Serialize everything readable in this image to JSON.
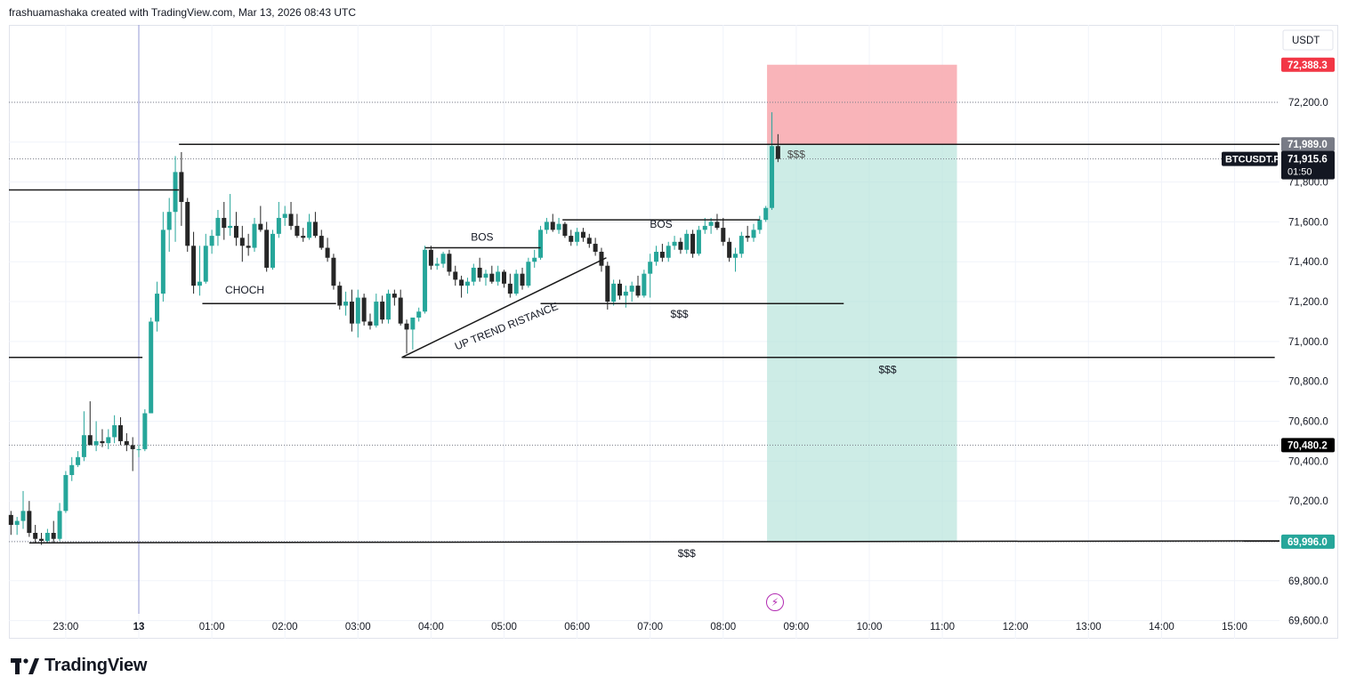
{
  "header": {
    "attribution": "frashuamashaka created with TradingView.com, Mar 13, 2026 08:43 UTC"
  },
  "footer": {
    "brand": "TradingView"
  },
  "colors": {
    "up": "#26a69a",
    "down": "#262626",
    "grid": "#f0f3fa",
    "axis_text": "#131722",
    "stop_zone": "#f8a7ad",
    "target_zone": "#b2e2d8",
    "stop_label": "#f23645",
    "neutral_label": "#787b86",
    "dark_label": "#131722",
    "target_label": "#26a69a"
  },
  "chart_data": {
    "type": "candlestick",
    "symbol": "BTCUSDT.P",
    "currency": "USDT",
    "ylim": [
      69500,
      72600
    ],
    "y_ticks": [
      "69,600.0",
      "69,800.0",
      "70,000.0",
      "70,200.0",
      "70,400.0",
      "70,600.0",
      "70,800.0",
      "71,000.0",
      "71,200.0",
      "71,400.0",
      "71,600.0",
      "71,800.0",
      "72,000.0",
      "72,200.0"
    ],
    "x_ticks": [
      "23:00",
      "13",
      "01:00",
      "02:00",
      "03:00",
      "04:00",
      "05:00",
      "06:00",
      "07:00",
      "08:00",
      "09:00",
      "10:00",
      "11:00",
      "12:00",
      "13:00",
      "14:00",
      "15:00"
    ],
    "x_tick_hours": [
      -1,
      0,
      1,
      2,
      3,
      4,
      5,
      6,
      7,
      8,
      9,
      10,
      11,
      12,
      13,
      14,
      15
    ],
    "x_range_hours": [
      -1.8,
      15.65
    ],
    "candle_interval_minutes": 5,
    "candles": [
      [
        -1.75,
        70130,
        70150,
        70030,
        70080
      ],
      [
        -1.6667,
        70080,
        70120,
        70030,
        70100
      ],
      [
        -1.5833,
        70100,
        70250,
        70060,
        70150
      ],
      [
        -1.5,
        70150,
        70200,
        70020,
        70040
      ],
      [
        -1.4167,
        70040,
        70080,
        69990,
        70010
      ],
      [
        -1.3333,
        70010,
        70040,
        69980,
        70000
      ],
      [
        -1.25,
        70000,
        70060,
        69990,
        70040
      ],
      [
        -1.1667,
        70040,
        70100,
        69990,
        70010
      ],
      [
        -1.0833,
        70010,
        70190,
        70000,
        70150
      ],
      [
        -1.0,
        70150,
        70350,
        70140,
        70330
      ],
      [
        -0.9167,
        70330,
        70420,
        70300,
        70380
      ],
      [
        -0.8333,
        70380,
        70450,
        70370,
        70420
      ],
      [
        -0.75,
        70420,
        70650,
        70400,
        70530
      ],
      [
        -0.6667,
        70530,
        70700,
        70500,
        70480
      ],
      [
        -0.5833,
        70480,
        70600,
        70450,
        70500
      ],
      [
        -0.5,
        70500,
        70560,
        70470,
        70490
      ],
      [
        -0.4167,
        70490,
        70560,
        70460,
        70520
      ],
      [
        -0.3333,
        70520,
        70630,
        70490,
        70580
      ],
      [
        -0.25,
        70580,
        70620,
        70480,
        70500
      ],
      [
        -0.1667,
        70500,
        70540,
        70450,
        70480
      ],
      [
        -0.0833,
        70480,
        70520,
        70350,
        70460
      ],
      [
        0.0,
        70460,
        70480,
        70420,
        70460
      ],
      [
        0.0833,
        70460,
        70660,
        70450,
        70640
      ],
      [
        0.1667,
        70640,
        71120,
        70640,
        71100
      ],
      [
        0.25,
        71100,
        71300,
        71050,
        71240
      ],
      [
        0.3333,
        71240,
        71650,
        71200,
        71560
      ],
      [
        0.4167,
        71560,
        71720,
        71450,
        71650
      ],
      [
        0.5,
        71650,
        71930,
        71500,
        71850
      ],
      [
        0.5833,
        71850,
        71950,
        71580,
        71700
      ],
      [
        0.6667,
        71700,
        71720,
        71450,
        71480
      ],
      [
        0.75,
        71480,
        71550,
        71240,
        71280
      ],
      [
        0.8333,
        71280,
        71480,
        71230,
        71300
      ],
      [
        0.9167,
        71300,
        71540,
        71290,
        71480
      ],
      [
        1.0,
        71480,
        71560,
        71440,
        71530
      ],
      [
        1.0833,
        71530,
        71660,
        71480,
        71620
      ],
      [
        1.1667,
        71620,
        71700,
        71510,
        71570
      ],
      [
        1.25,
        71570,
        71740,
        71530,
        71580
      ],
      [
        1.3333,
        71580,
        71650,
        71480,
        71520
      ],
      [
        1.4167,
        71520,
        71580,
        71400,
        71480
      ],
      [
        1.5,
        71480,
        71540,
        71430,
        71470
      ],
      [
        1.5833,
        71470,
        71620,
        71450,
        71590
      ],
      [
        1.6667,
        71590,
        71680,
        71550,
        71560
      ],
      [
        1.75,
        71560,
        71600,
        71350,
        71370
      ],
      [
        1.8333,
        71370,
        71560,
        71360,
        71540
      ],
      [
        1.9167,
        71540,
        71700,
        71520,
        71620
      ],
      [
        2.0,
        71620,
        71680,
        71580,
        71640
      ],
      [
        2.0833,
        71640,
        71700,
        71560,
        71580
      ],
      [
        2.1667,
        71580,
        71640,
        71520,
        71530
      ],
      [
        2.25,
        71530,
        71570,
        71500,
        71520
      ],
      [
        2.3333,
        71520,
        71640,
        71510,
        71600
      ],
      [
        2.4167,
        71600,
        71650,
        71520,
        71530
      ],
      [
        2.5,
        71530,
        71560,
        71460,
        71470
      ],
      [
        2.5833,
        71470,
        71520,
        71400,
        71420
      ],
      [
        2.6667,
        71420,
        71440,
        71260,
        71280
      ],
      [
        2.75,
        71280,
        71300,
        71160,
        71180
      ],
      [
        2.8333,
        71180,
        71250,
        71130,
        71200
      ],
      [
        2.9167,
        71200,
        71260,
        71050,
        71090
      ],
      [
        3.0,
        71090,
        71260,
        71020,
        71220
      ],
      [
        3.0833,
        71220,
        71240,
        71080,
        71100
      ],
      [
        3.1667,
        71100,
        71140,
        71060,
        71080
      ],
      [
        3.25,
        71080,
        71240,
        71070,
        71200
      ],
      [
        3.3333,
        71200,
        71230,
        71090,
        71110
      ],
      [
        3.4167,
        71110,
        71260,
        71090,
        71240
      ],
      [
        3.5,
        71240,
        71260,
        71180,
        71220
      ],
      [
        3.5833,
        71220,
        71260,
        71080,
        71090
      ],
      [
        3.6667,
        71090,
        71110,
        70940,
        71060
      ],
      [
        3.75,
        71060,
        71110,
        70960,
        71120
      ],
      [
        3.8333,
        71120,
        71170,
        71100,
        71150
      ],
      [
        3.9167,
        71150,
        71480,
        71140,
        71460
      ],
      [
        4.0,
        71460,
        71480,
        71360,
        71380
      ],
      [
        4.0833,
        71380,
        71420,
        71360,
        71390
      ],
      [
        4.1667,
        71390,
        71450,
        71370,
        71440
      ],
      [
        4.25,
        71440,
        71460,
        71330,
        71350
      ],
      [
        4.3333,
        71350,
        71380,
        71280,
        71310
      ],
      [
        4.4167,
        71310,
        71330,
        71220,
        71280
      ],
      [
        4.5,
        71280,
        71320,
        71240,
        71300
      ],
      [
        4.5833,
        71300,
        71390,
        71280,
        71370
      ],
      [
        4.6667,
        71370,
        71420,
        71300,
        71320
      ],
      [
        4.75,
        71320,
        71360,
        71280,
        71340
      ],
      [
        4.8333,
        71340,
        71380,
        71290,
        71300
      ],
      [
        4.9167,
        71300,
        71380,
        71280,
        71350
      ],
      [
        5.0,
        71350,
        71360,
        71270,
        71290
      ],
      [
        5.0833,
        71290,
        71340,
        71220,
        71240
      ],
      [
        5.1667,
        71240,
        71360,
        71230,
        71340
      ],
      [
        5.25,
        71340,
        71370,
        71260,
        71280
      ],
      [
        5.3333,
        71280,
        71420,
        71270,
        71400
      ],
      [
        5.4167,
        71400,
        71460,
        71370,
        71420
      ],
      [
        5.5,
        71420,
        71580,
        71410,
        71560
      ],
      [
        5.5833,
        71560,
        71620,
        71540,
        71600
      ],
      [
        5.6667,
        71600,
        71640,
        71550,
        71560
      ],
      [
        5.75,
        71560,
        71620,
        71540,
        71590
      ],
      [
        5.8333,
        71590,
        71600,
        71520,
        71530
      ],
      [
        5.9167,
        71530,
        71560,
        71480,
        71500
      ],
      [
        6.0,
        71500,
        71570,
        71480,
        71550
      ],
      [
        6.0833,
        71550,
        71570,
        71500,
        71520
      ],
      [
        6.1667,
        71520,
        71540,
        71470,
        71490
      ],
      [
        6.25,
        71490,
        71520,
        71430,
        71450
      ],
      [
        6.3333,
        71450,
        71470,
        71350,
        71380
      ],
      [
        6.4167,
        71380,
        71400,
        71160,
        71200
      ],
      [
        6.5,
        71200,
        71310,
        71180,
        71290
      ],
      [
        6.5833,
        71290,
        71310,
        71210,
        71230
      ],
      [
        6.6667,
        71230,
        71280,
        71170,
        71250
      ],
      [
        6.75,
        71250,
        71300,
        71200,
        71280
      ],
      [
        6.8333,
        71280,
        71330,
        71220,
        71230
      ],
      [
        6.9167,
        71230,
        71360,
        71220,
        71340
      ],
      [
        7.0,
        71340,
        71440,
        71220,
        71400
      ],
      [
        7.0833,
        71400,
        71480,
        71380,
        71450
      ],
      [
        7.1667,
        71450,
        71490,
        71400,
        71420
      ],
      [
        7.25,
        71420,
        71500,
        71400,
        71480
      ],
      [
        7.3333,
        71480,
        71530,
        71460,
        71500
      ],
      [
        7.4167,
        71500,
        71520,
        71440,
        71460
      ],
      [
        7.5,
        71460,
        71560,
        71440,
        71540
      ],
      [
        7.5833,
        71540,
        71560,
        71420,
        71440
      ],
      [
        7.6667,
        71440,
        71580,
        71430,
        71560
      ],
      [
        7.75,
        71560,
        71620,
        71540,
        71580
      ],
      [
        7.8333,
        71580,
        71620,
        71540,
        71600
      ],
      [
        7.9167,
        71600,
        71640,
        71560,
        71570
      ],
      [
        8.0,
        71570,
        71620,
        71480,
        71500
      ],
      [
        8.0833,
        71500,
        71520,
        71400,
        71420
      ],
      [
        8.1667,
        71420,
        71470,
        71350,
        71440
      ],
      [
        8.25,
        71440,
        71550,
        71420,
        71530
      ],
      [
        8.3333,
        71530,
        71580,
        71500,
        71520
      ],
      [
        8.4167,
        71520,
        71590,
        71500,
        71560
      ],
      [
        8.5,
        71560,
        71630,
        71540,
        71610
      ],
      [
        8.5833,
        71610,
        71680,
        71600,
        71670
      ],
      [
        8.6667,
        71670,
        72150,
        71660,
        71980
      ],
      [
        8.75,
        71980,
        72040,
        71900,
        71915.6
      ]
    ],
    "price_labels": {
      "stop": "72,388.3",
      "entry": "71,989.0",
      "last": "71,915.6",
      "countdown": "01:50",
      "marked": "70,480.2",
      "target": "69,996.0"
    },
    "last_value": 71915.6,
    "stop_value": 72388.3,
    "entry_value": 71989.0,
    "marked_value": 70480.2,
    "target_value": 69996.0,
    "dotted_lines": [
      72200,
      71915.6,
      70480.2,
      69996
    ],
    "position_tool": {
      "x_start_hours": 8.6,
      "x_end_hours": 11.2,
      "entry": 71989,
      "stop": 72388.3,
      "target": 69996
    },
    "annotations": {
      "choch": "CHOCH",
      "bos1": "BOS",
      "bos2": "BOS",
      "trend": "UP TREND RISTANCE",
      "liq1": "$$$",
      "liq2": "$$$",
      "liq3": "$$$",
      "liq4": "$$$"
    },
    "drawn_lines": [
      {
        "name": "line-high-eq",
        "x1": 0.55,
        "x2": 15.65,
        "y1": 71989,
        "y2": 71989
      },
      {
        "name": "line-left-high",
        "x1": -1.8,
        "x2": 0.55,
        "y1": 71760,
        "y2": 71760
      },
      {
        "name": "line-choch",
        "x1": 0.87,
        "x2": 2.7,
        "y1": 71190,
        "y2": 71190
      },
      {
        "name": "line-bos1",
        "x1": 3.92,
        "x2": 5.5,
        "y1": 71470,
        "y2": 71470
      },
      {
        "name": "line-bos2",
        "x1": 5.8,
        "x2": 8.5,
        "y1": 71610,
        "y2": 71610
      },
      {
        "name": "line-liq-mid",
        "x1": 5.5,
        "x2": 9.65,
        "y1": 71190,
        "y2": 71190
      },
      {
        "name": "line-left-low",
        "x1": -1.8,
        "x2": 0.05,
        "y1": 70920,
        "y2": 70920
      },
      {
        "name": "line-liq-low",
        "x1": 3.6,
        "x2": 15.55,
        "y1": 70920,
        "y2": 70920
      },
      {
        "name": "line-bottom-liq",
        "x1": -1.5,
        "x2": 15.65,
        "y1": 69990,
        "y2": 70000
      },
      {
        "name": "line-trend",
        "x1": 3.6,
        "x2": 6.4,
        "y1": 70920,
        "y2": 71420
      }
    ],
    "vertical_marker_hours": 0.0
  }
}
